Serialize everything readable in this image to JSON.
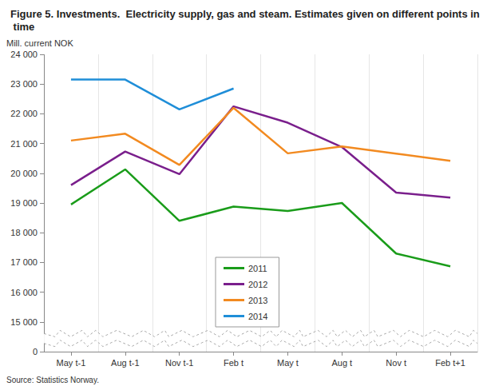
{
  "chart_data": {
    "type": "line",
    "title": "Figure 5. Investments.  Electricity supply, gas and steam. Estimates given on different points in time",
    "ylabel": "Mill. current NOK",
    "source": "Source: Statistics Norway.",
    "categories": [
      "May t-1",
      "Aug t-1",
      "Nov t-1",
      "Feb t",
      "May t",
      "Aug t",
      "Nov t",
      "Feb t+1"
    ],
    "series": [
      {
        "name": "2011",
        "color": "#1a9c1a",
        "values": [
          18950,
          20130,
          18400,
          18880,
          18730,
          19000,
          17300,
          16870
        ]
      },
      {
        "name": "2012",
        "color": "#7a1f8c",
        "values": [
          19600,
          20730,
          19970,
          22250,
          21700,
          20880,
          19350,
          19180
        ]
      },
      {
        "name": "2013",
        "color": "#f28a20",
        "values": [
          21100,
          21330,
          20280,
          22200,
          20670,
          20900,
          20660,
          20420
        ]
      },
      {
        "name": "2014",
        "color": "#1f8ed8",
        "values": [
          23150,
          23150,
          22150,
          22850,
          null,
          null,
          null,
          null
        ]
      }
    ],
    "ylim": [
      0,
      24000
    ],
    "yticks": [
      0,
      {
        "value": 15000,
        "label": "15 000"
      },
      {
        "value": 16000,
        "label": "16 000"
      },
      {
        "value": 17000,
        "label": "17 000"
      },
      {
        "value": 18000,
        "label": "18 000"
      },
      {
        "value": 19000,
        "label": "19 000"
      },
      {
        "value": 20000,
        "label": "20 000"
      },
      {
        "value": 21000,
        "label": "21 000"
      },
      {
        "value": 22000,
        "label": "22 000"
      },
      {
        "value": 23000,
        "label": "23 000"
      },
      {
        "value": 24000,
        "label": "24 000"
      }
    ],
    "grid": true,
    "legend": "center"
  }
}
